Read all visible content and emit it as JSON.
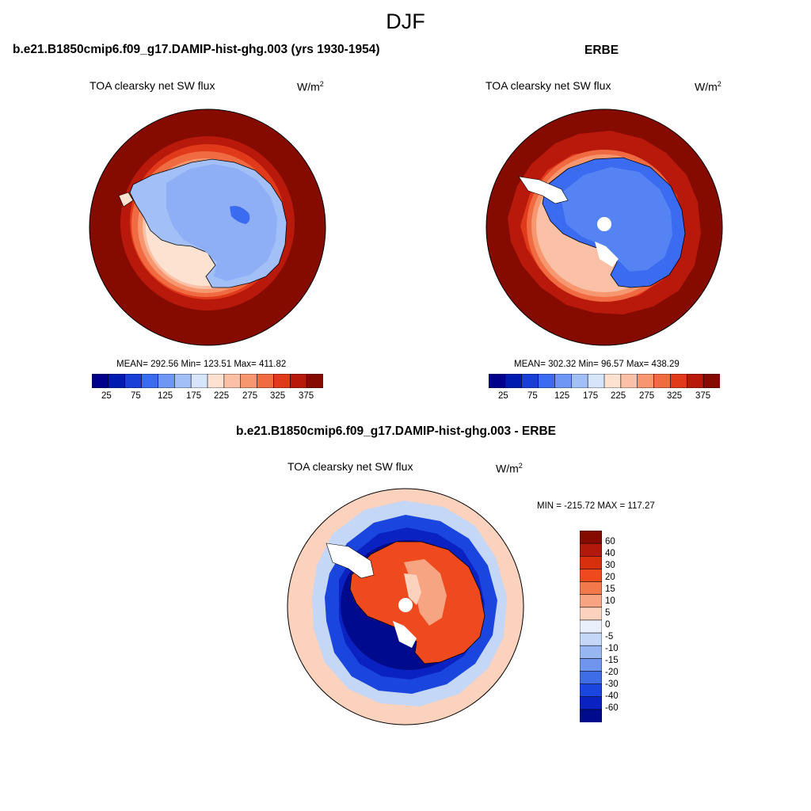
{
  "season": "DJF",
  "panels": [
    {
      "title": "b.e21.B1850cmip6.f09_g17.DAMIP-hist-ghg.003 (yrs 1930-1954)",
      "variable": "TOA clearsky net SW flux",
      "units_base": "W/m",
      "units_exp": "2",
      "stats": "MEAN= 292.56  Min= 123.51  Max= 411.82",
      "colorbar_ticks": [
        "25",
        "75",
        "125",
        "175",
        "225",
        "275",
        "325",
        "375"
      ]
    },
    {
      "title": "ERBE",
      "variable": "TOA clearsky net SW flux",
      "units_base": "W/m",
      "units_exp": "2",
      "stats": "MEAN= 302.32  Min=  96.57  Max= 438.29",
      "colorbar_ticks": [
        "25",
        "75",
        "125",
        "175",
        "225",
        "275",
        "325",
        "375"
      ]
    },
    {
      "title": "b.e21.B1850cmip6.f09_g17.DAMIP-hist-ghg.003 - ERBE",
      "variable": "TOA clearsky net SW flux",
      "units_base": "W/m",
      "units_exp": "2",
      "stats": "MIN = -215.72 MAX = 117.27",
      "colorbar_ticks": [
        "60",
        "40",
        "30",
        "20",
        "15",
        "10",
        "5",
        "0",
        "-5",
        "-10",
        "-15",
        "-20",
        "-30",
        "-40",
        "-60"
      ]
    }
  ],
  "colors": {
    "abs_scale": [
      "#00008c",
      "#001cb0",
      "#1a3fd8",
      "#3a6bf0",
      "#6e97f5",
      "#a3bff7",
      "#d7e5fb",
      "#fde2d2",
      "#fbc1a6",
      "#f7976f",
      "#f06a42",
      "#e03a1b",
      "#b8190a",
      "#850b00"
    ],
    "diff_scale": [
      "#850b00",
      "#b3190a",
      "#d8300f",
      "#ee4a1e",
      "#f3784c",
      "#f7a483",
      "#fbd2bd",
      "#eaf0fb",
      "#c4d7f7",
      "#98b6f2",
      "#6f95ee",
      "#3f6de7",
      "#1a45de",
      "#0a22c2",
      "#000a8c"
    ]
  }
}
